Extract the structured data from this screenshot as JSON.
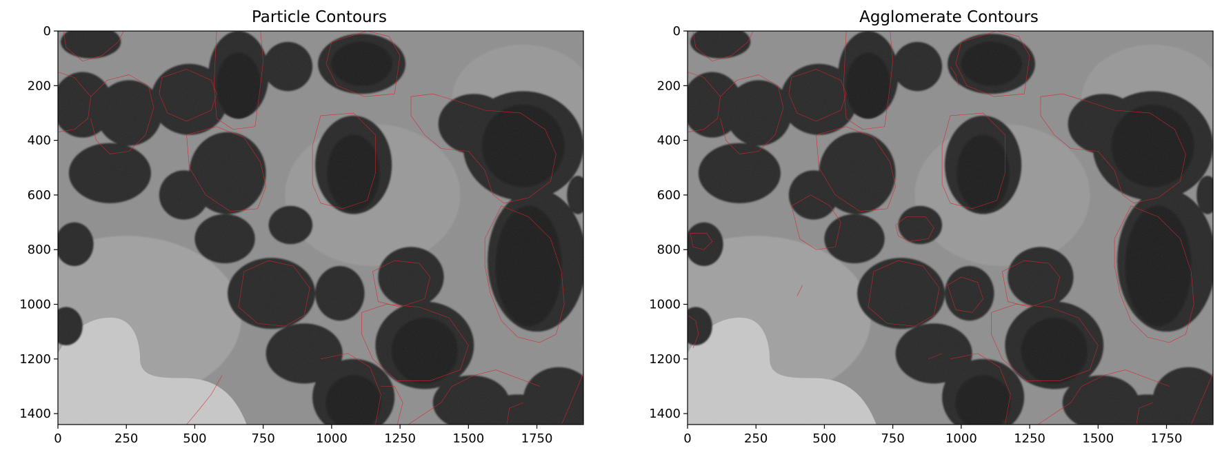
{
  "figure": {
    "panels": [
      {
        "title": "Particle Contours",
        "xticks": [
          "0",
          "250",
          "500",
          "750",
          "1000",
          "1250",
          "1500",
          "1750"
        ],
        "yticks": [
          "0",
          "200",
          "400",
          "600",
          "800",
          "1000",
          "1200",
          "1400"
        ]
      },
      {
        "title": "Agglomerate Contours",
        "xticks": [
          "0",
          "250",
          "500",
          "750",
          "1000",
          "1250",
          "1500",
          "1750"
        ],
        "yticks": [
          "0",
          "200",
          "400",
          "600",
          "800",
          "1000",
          "1200",
          "1400"
        ]
      }
    ],
    "image_extent": {
      "x": [
        0,
        1920
      ],
      "y": [
        0,
        1440
      ]
    },
    "colors": {
      "contour": "#d8262c",
      "background": "#8a8a8a",
      "particle": "#1e1e1e",
      "hole": "#c9c9c9"
    }
  }
}
